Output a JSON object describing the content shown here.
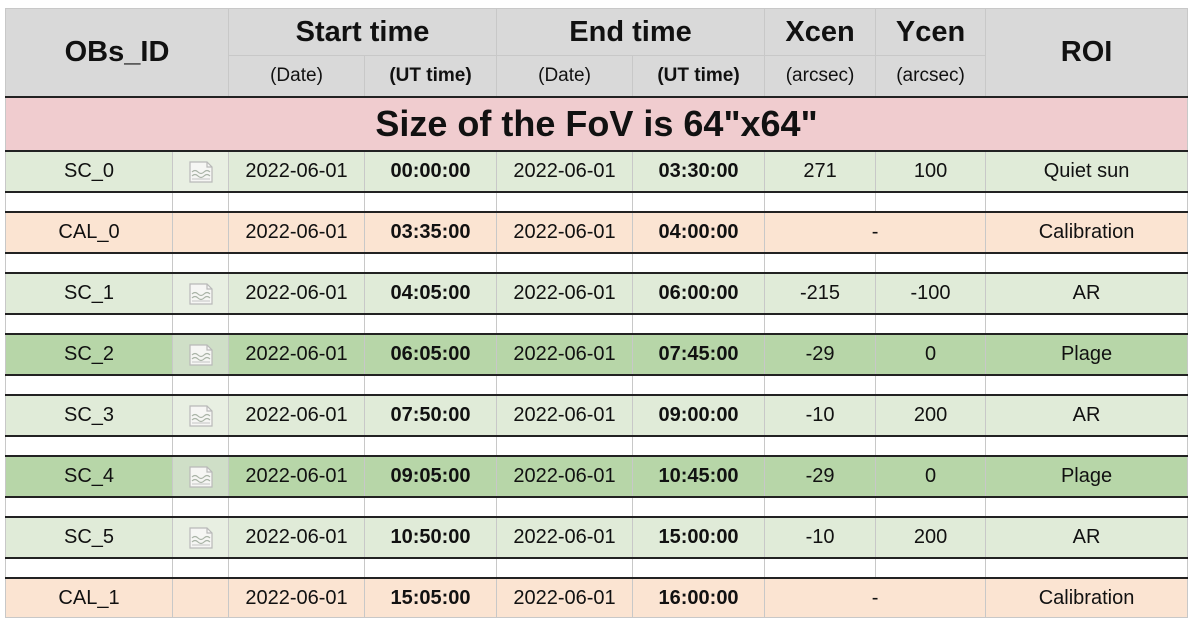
{
  "header": {
    "obs_id": "OBs_ID",
    "start_time": "Start time",
    "end_time": "End time",
    "xcen": "Xcen",
    "ycen": "Ycen",
    "roi": "ROI",
    "sub_date": "(Date)",
    "sub_ut": "(UT time)",
    "sub_arcsec": "(arcsec)"
  },
  "banner": "Size of the FoV is 64\"x64\"",
  "rows": [
    {
      "id": "SC_0",
      "start_date": "2022-06-01",
      "start_time": "00:00:00",
      "end_date": "2022-06-01",
      "end_time": "03:30:00",
      "xcen": "271",
      "ycen": "100",
      "roi": "Quiet sun",
      "kind": "light",
      "icon": "file-icon"
    },
    {
      "id": "CAL_0",
      "start_date": "2022-06-01",
      "start_time": "03:35:00",
      "end_date": "2022-06-01",
      "end_time": "04:00:00",
      "xcen_ycen": "-",
      "roi": "Calibration",
      "kind": "cal"
    },
    {
      "id": "SC_1",
      "start_date": "2022-06-01",
      "start_time": "04:05:00",
      "end_date": "2022-06-01",
      "end_time": "06:00:00",
      "xcen": "-215",
      "ycen": "-100",
      "roi": "AR",
      "kind": "light",
      "icon": "file-icon"
    },
    {
      "id": "SC_2",
      "start_date": "2022-06-01",
      "start_time": "06:05:00",
      "end_date": "2022-06-01",
      "end_time": "07:45:00",
      "xcen": "-29",
      "ycen": "0",
      "roi": "Plage",
      "kind": "dark",
      "icon": "file-icon"
    },
    {
      "id": "SC_3",
      "start_date": "2022-06-01",
      "start_time": "07:50:00",
      "end_date": "2022-06-01",
      "end_time": "09:00:00",
      "xcen": "-10",
      "ycen": "200",
      "roi": "AR",
      "kind": "light",
      "icon": "file-icon"
    },
    {
      "id": "SC_4",
      "start_date": "2022-06-01",
      "start_time": "09:05:00",
      "end_date": "2022-06-01",
      "end_time": "10:45:00",
      "xcen": "-29",
      "ycen": "0",
      "roi": "Plage",
      "kind": "dark",
      "icon": "file-icon"
    },
    {
      "id": "SC_5",
      "start_date": "2022-06-01",
      "start_time": "10:50:00",
      "end_date": "2022-06-01",
      "end_time": "15:00:00",
      "xcen": "-10",
      "ycen": "200",
      "roi": "AR",
      "kind": "light",
      "icon": "file-icon"
    },
    {
      "id": "CAL_1",
      "start_date": "2022-06-01",
      "start_time": "15:05:00",
      "end_date": "2022-06-01",
      "end_time": "16:00:00",
      "xcen_ycen": "-",
      "roi": "Calibration",
      "kind": "cal"
    }
  ],
  "colors": {
    "header_bg": "#d9d9d9",
    "banner_bg": "#f0cccf",
    "science_light": "#e0ebd8",
    "science_dark": "#b7d6a8",
    "calibration": "#fbe4d2"
  }
}
